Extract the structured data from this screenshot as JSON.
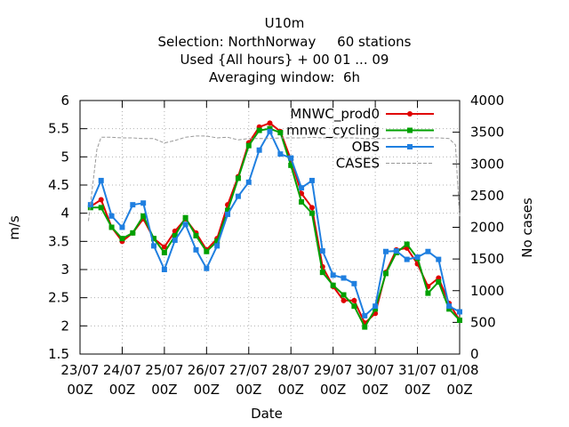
{
  "chart_data": {
    "type": "line",
    "title_lines": [
      "U10m",
      "Selection: NorthNorway     60 stations",
      "Used {All hours} + 00 01 ... 09",
      "Averaging window:  6h"
    ],
    "xlabel": "Date",
    "ylabel": "m/s",
    "y2label": "No cases",
    "ylim": [
      1.5,
      6
    ],
    "y2lim": [
      0,
      4000
    ],
    "yticks": [
      "1.5",
      "2",
      "2.5",
      "3",
      "3.5",
      "4",
      "4.5",
      "5",
      "5.5",
      "6"
    ],
    "y2ticks": [
      "0",
      "500",
      "1000",
      "1500",
      "2000",
      "2500",
      "3000",
      "3500",
      "4000"
    ],
    "xlim": [
      0,
      9
    ],
    "xticks": [
      {
        "date": "23/07",
        "hour": "00Z"
      },
      {
        "date": "24/07",
        "hour": "00Z"
      },
      {
        "date": "25/07",
        "hour": "00Z"
      },
      {
        "date": "26/07",
        "hour": "00Z"
      },
      {
        "date": "27/07",
        "hour": "00Z"
      },
      {
        "date": "28/07",
        "hour": "00Z"
      },
      {
        "date": "29/07",
        "hour": "00Z"
      },
      {
        "date": "30/07",
        "hour": "00Z"
      },
      {
        "date": "31/07",
        "hour": "00Z"
      },
      {
        "date": "01/08",
        "hour": "00Z"
      }
    ],
    "legend_position": "top-right",
    "x": [
      0.25,
      0.5,
      0.75,
      1.0,
      1.25,
      1.5,
      1.75,
      2.0,
      2.25,
      2.5,
      2.75,
      3.0,
      3.25,
      3.5,
      3.75,
      4.0,
      4.25,
      4.5,
      4.75,
      5.0,
      5.25,
      5.5,
      5.75,
      6.0,
      6.25,
      6.5,
      6.75,
      7.0,
      7.25,
      7.5,
      7.75,
      8.0,
      8.25,
      8.5,
      8.75,
      9.0
    ],
    "series": [
      {
        "name": "MNWC_prod0",
        "color": "#e00000",
        "axis": "left",
        "style": "solid",
        "marker": "circle",
        "values": [
          4.12,
          4.24,
          3.75,
          3.5,
          3.65,
          3.9,
          3.55,
          3.4,
          3.68,
          3.9,
          3.65,
          3.35,
          3.55,
          4.15,
          4.65,
          5.25,
          5.53,
          5.6,
          5.45,
          4.95,
          4.35,
          4.1,
          3.05,
          2.7,
          2.45,
          2.45,
          2.05,
          2.22,
          2.95,
          3.35,
          3.38,
          3.1,
          2.7,
          2.85,
          2.4,
          2.1
        ]
      },
      {
        "name": "mnwc_cycling",
        "color": "#00a000",
        "axis": "left",
        "style": "solid",
        "marker": "square",
        "values": [
          4.1,
          4.1,
          3.75,
          3.55,
          3.65,
          3.95,
          3.55,
          3.3,
          3.6,
          3.92,
          3.6,
          3.32,
          3.5,
          4.05,
          4.62,
          5.2,
          5.47,
          5.5,
          5.43,
          4.85,
          4.2,
          4.0,
          2.95,
          2.72,
          2.55,
          2.35,
          1.98,
          2.3,
          2.93,
          3.3,
          3.45,
          3.2,
          2.58,
          2.78,
          2.3,
          2.1
        ]
      },
      {
        "name": "OBS",
        "color": "#1f7fe0",
        "axis": "left",
        "style": "solid",
        "marker": "square",
        "values": [
          4.15,
          4.58,
          3.95,
          3.75,
          4.15,
          4.18,
          3.42,
          3.0,
          3.52,
          3.8,
          3.35,
          3.02,
          3.42,
          3.98,
          4.3,
          4.55,
          5.12,
          5.45,
          5.05,
          4.98,
          4.45,
          4.58,
          3.33,
          2.9,
          2.85,
          2.75,
          2.18,
          2.35,
          3.32,
          3.33,
          3.18,
          3.22,
          3.32,
          3.18,
          2.35,
          2.25
        ]
      },
      {
        "name": "CASES",
        "color": "#999999",
        "axis": "right",
        "style": "dashed",
        "marker": "none",
        "x": [
          0.2,
          0.4,
          0.5,
          0.75,
          1.0,
          1.25,
          1.5,
          1.75,
          2.0,
          2.25,
          2.5,
          2.75,
          3.0,
          3.25,
          3.5,
          3.75,
          4.0,
          4.25,
          4.5,
          4.75,
          5.0,
          5.25,
          5.5,
          5.75,
          6.0,
          6.25,
          6.5,
          6.75,
          7.0,
          7.25,
          7.5,
          7.75,
          8.0,
          8.25,
          8.5,
          8.75,
          8.9,
          9.0
        ],
        "values": [
          2100,
          3230,
          3420,
          3420,
          3410,
          3410,
          3400,
          3400,
          3330,
          3370,
          3420,
          3440,
          3440,
          3410,
          3420,
          3380,
          3400,
          3400,
          3400,
          3410,
          3410,
          3410,
          3420,
          3410,
          3410,
          3410,
          3410,
          3400,
          3400,
          3400,
          3410,
          3410,
          3410,
          3410,
          3410,
          3400,
          3300,
          2150
        ]
      }
    ]
  }
}
